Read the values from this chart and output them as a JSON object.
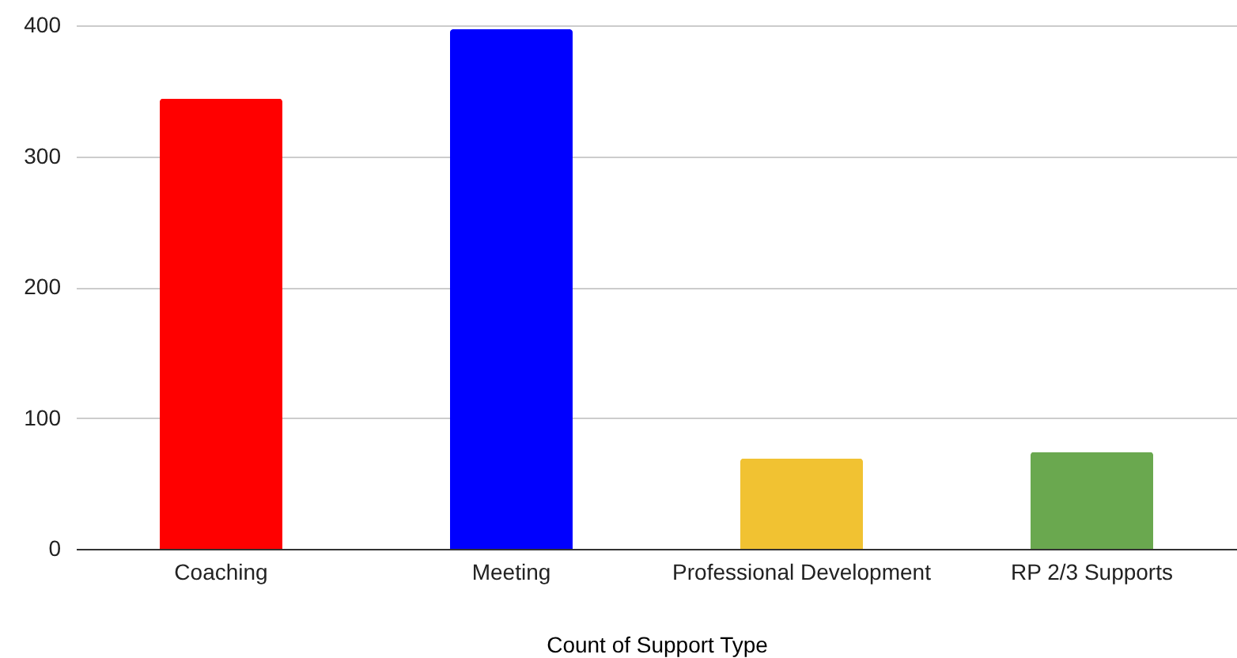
{
  "chart_data": {
    "type": "bar",
    "xlabel": "Count of Support Type",
    "categories": [
      "Coaching",
      "Meeting",
      "Professional Development",
      "RP 2/3 Supports"
    ],
    "values": [
      344,
      397,
      69,
      74
    ],
    "colors": [
      "#ff0000",
      "#0000ff",
      "#f1c232",
      "#6aa84f"
    ],
    "ylim": [
      0,
      400
    ],
    "yticks": [
      0,
      100,
      200,
      300,
      400
    ],
    "grid": "y"
  }
}
